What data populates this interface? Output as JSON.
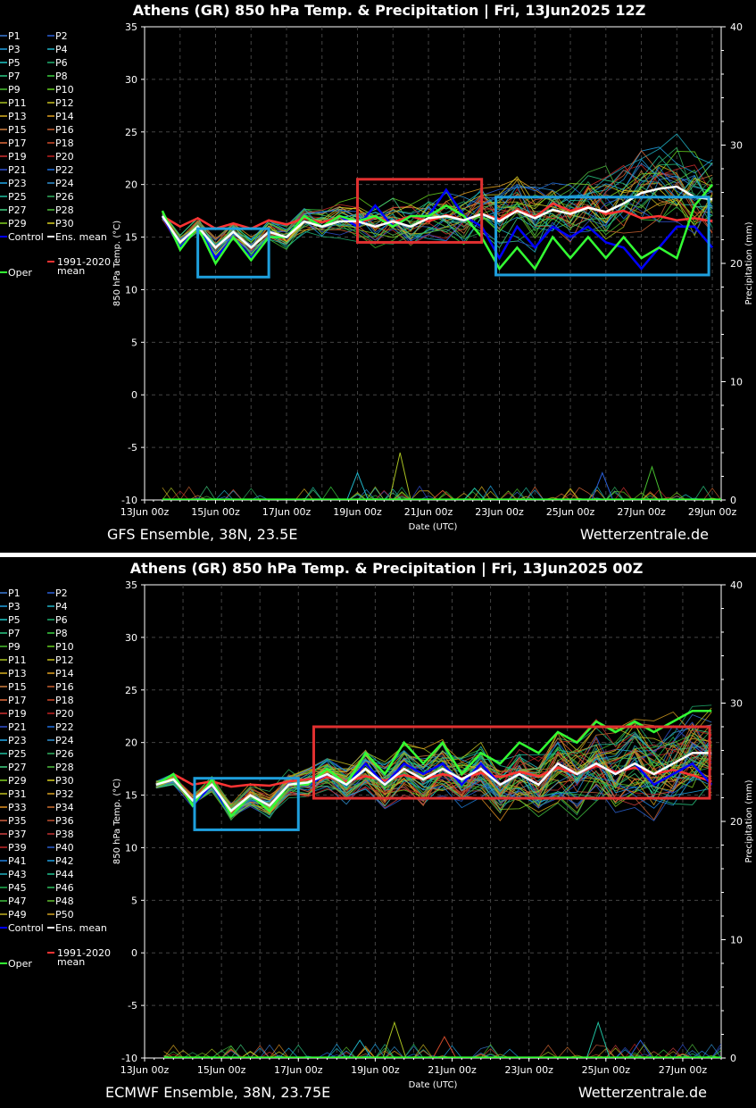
{
  "panels": [
    {
      "title": "Athens  (GR)  850 hPa Temp. & Precipitation | Fri, 13Jun2025 12Z",
      "ylabel_left": "850 hPa Temp. (°C)",
      "ylabel_right": "Precipitation (mm)",
      "xlabel": "Date (UTC)",
      "footer_left": "GFS Ensemble, 38N, 23.5E",
      "footer_right": "Wetterzentrale.de",
      "xticks": [
        "13Jun 00z",
        "15Jun 00z",
        "17Jun 00z",
        "19Jun 00z",
        "21Jun 00z",
        "23Jun 00z",
        "25Jun 00z",
        "27Jun 00z",
        "29Jun 00z"
      ],
      "legend": [
        "P1",
        "P2",
        "P3",
        "P4",
        "P5",
        "P6",
        "P7",
        "P8",
        "P9",
        "P10",
        "P11",
        "P12",
        "P13",
        "P14",
        "P15",
        "P16",
        "P17",
        "P18",
        "P19",
        "P20",
        "P21",
        "P22",
        "P23",
        "P24",
        "P25",
        "P26",
        "P27",
        "P28",
        "P29",
        "P30",
        "Control",
        "Ens. mean",
        "Oper",
        "1991-2020 mean"
      ],
      "legend_colors": [
        "#3a7bd5",
        "#2a5fd8",
        "#1fa0e0",
        "#20b4c8",
        "#1ec8c8",
        "#20b070",
        "#2ac882",
        "#3ad040",
        "#48c030",
        "#66d020",
        "#a8c020",
        "#c8c020",
        "#d8b020",
        "#e0a020",
        "#d08040",
        "#c86030",
        "#e06a3a",
        "#d04a2a",
        "#d03030",
        "#c02020",
        "#3050d0",
        "#2070e0",
        "#20a8e8",
        "#3090d0",
        "#20c0a0",
        "#30b060",
        "#40d080",
        "#50c040",
        "#80d020",
        "#d8d020",
        "#0000ff",
        "#ffffff",
        "#33ff33",
        "#ff3333"
      ],
      "boxes": [
        {
          "color": "#1e9fdd",
          "x0": 1.5,
          "x1": 3.5,
          "y0": 11.2,
          "y1": 15.8
        },
        {
          "color": "#e03030",
          "x0": 6.0,
          "x1": 9.5,
          "y0": 14.5,
          "y1": 20.5
        },
        {
          "color": "#1e9fdd",
          "x0": 9.9,
          "x1": 15.9,
          "y0": 11.4,
          "y1": 18.8
        }
      ],
      "chart_data": {
        "type": "line",
        "x_range": [
          "13Jun 00z",
          "29Jun 06z"
        ],
        "ylim_left": [
          -10,
          35
        ],
        "ylim_right": [
          0,
          40
        ],
        "yticks_left": [
          -10,
          -5,
          0,
          5,
          10,
          15,
          20,
          25,
          30,
          35
        ],
        "yticks_right": [
          0,
          10,
          20,
          30,
          40
        ],
        "series": [
          {
            "name": "Ens. mean",
            "x": [
              0.5,
              1.0,
              1.5,
              2.0,
              2.5,
              3.0,
              3.5,
              4.0,
              4.5,
              5.0,
              5.5,
              6.0,
              6.5,
              7.0,
              7.5,
              8.0,
              8.5,
              9.0,
              9.5,
              10.0,
              10.5,
              11.0,
              11.5,
              12.0,
              12.5,
              13.0,
              13.5,
              14.0,
              14.5,
              15.0,
              15.5,
              16.0
            ],
            "values": [
              17,
              14.5,
              16,
              14,
              15.5,
              14,
              15.5,
              15,
              16.5,
              16,
              16.5,
              16.5,
              16,
              16.5,
              16,
              16.8,
              17,
              16.6,
              17.2,
              16.5,
              17.5,
              16.8,
              17.6,
              17.2,
              17.8,
              17.4,
              18.2,
              19.2,
              19.6,
              19.8,
              18.8,
              18.6
            ]
          },
          {
            "name": "Control",
            "x": [
              0.5,
              1.0,
              1.5,
              2.0,
              2.5,
              3.0,
              3.5,
              4.0,
              4.5,
              5.0,
              5.5,
              6.0,
              6.5,
              7.0,
              7.5,
              8.0,
              8.5,
              9.0,
              9.5,
              10.0,
              10.5,
              11.0,
              11.5,
              12.0,
              12.5,
              13.0,
              13.5,
              14.0,
              14.5,
              15.0,
              15.5,
              16.0
            ],
            "values": [
              17,
              14,
              16,
              13,
              15,
              13,
              15,
              15,
              17,
              16,
              17,
              16,
              18,
              16,
              17,
              17,
              19.5,
              17,
              16,
              13,
              16,
              14,
              16,
              15,
              16,
              14.5,
              14,
              12,
              14,
              16,
              16,
              14
            ]
          },
          {
            "name": "Oper",
            "x": [
              0.5,
              1.0,
              1.5,
              2.0,
              2.5,
              3.0,
              3.5,
              4.0,
              4.5,
              5.0,
              5.5,
              6.0,
              6.5,
              7.0,
              7.5,
              8.0,
              8.5,
              9.0,
              9.5,
              10.0,
              10.5,
              11.0,
              11.5,
              12.0,
              12.5,
              13.0,
              13.5,
              14.0,
              14.5,
              15.0,
              15.5,
              16.0
            ],
            "values": [
              17.5,
              13.8,
              16,
              12.5,
              15,
              12.8,
              15,
              15,
              17,
              16,
              17,
              16.5,
              17,
              16,
              17,
              17,
              18,
              17,
              15,
              12,
              14,
              12,
              15,
              13,
              15,
              13,
              15,
              13,
              14,
              13,
              18,
              20
            ]
          },
          {
            "name": "1991-2020 mean",
            "x": [
              0.5,
              1.0,
              1.5,
              2.0,
              2.5,
              3.0,
              3.5,
              4.0,
              4.5,
              5.0,
              5.5,
              6.0,
              6.5,
              7.0,
              7.5,
              8.0,
              8.5,
              9.0,
              9.5,
              10.0,
              10.5,
              11.0,
              11.5,
              12.0,
              12.5,
              13.0,
              13.5,
              14.0,
              14.5,
              15.0,
              15.5,
              16.0
            ],
            "values": [
              17,
              16,
              16.8,
              15.8,
              16.3,
              15.8,
              16.6,
              16.2,
              16.8,
              16.4,
              16.9,
              16.3,
              16.9,
              16.4,
              17,
              16.5,
              17.1,
              16.6,
              17.2,
              16.7,
              17.6,
              16.9,
              18.2,
              17.5,
              17.9,
              17.2,
              17.5,
              16.8,
              17,
              16.6,
              16.8,
              16.5
            ]
          }
        ],
        "precip_peaks": [
          {
            "x": 6.0,
            "mm": 2.3
          },
          {
            "x": 7.2,
            "mm": 4.0
          },
          {
            "x": 8.4,
            "mm": 0.8
          },
          {
            "x": 9.3,
            "mm": 1.0
          },
          {
            "x": 12.9,
            "mm": 2.3
          },
          {
            "x": 14.3,
            "mm": 2.8
          }
        ]
      }
    },
    {
      "title": "Athens  (GR)  850 hPa Temp. & Precipitation | Fri, 13Jun2025 00Z",
      "ylabel_left": "850 hPa Temp. (°C)",
      "ylabel_right": "Precipitation (mm)",
      "xlabel": "Date (UTC)",
      "footer_left": "ECMWF Ensemble, 38N, 23.75E",
      "footer_right": "Wetterzentrale.de",
      "xticks": [
        "13Jun 00z",
        "15Jun 00z",
        "17Jun 00z",
        "19Jun 00z",
        "21Jun 00z",
        "23Jun 00z",
        "25Jun 00z",
        "27Jun 00z"
      ],
      "legend": [
        "P1",
        "P2",
        "P3",
        "P4",
        "P5",
        "P6",
        "P7",
        "P8",
        "P9",
        "P10",
        "P11",
        "P12",
        "P13",
        "P14",
        "P15",
        "P16",
        "P17",
        "P18",
        "P19",
        "P20",
        "P21",
        "P22",
        "P23",
        "P24",
        "P25",
        "P26",
        "P27",
        "P28",
        "P29",
        "P30",
        "P31",
        "P32",
        "P33",
        "P34",
        "P35",
        "P36",
        "P37",
        "P38",
        "P39",
        "P40",
        "P41",
        "P42",
        "P43",
        "P44",
        "P45",
        "P46",
        "P47",
        "P48",
        "P49",
        "P50",
        "Control",
        "Ens. mean",
        "Oper",
        "1991-2020 mean"
      ],
      "legend_colors": [
        "#3a7bd5",
        "#2a5fd8",
        "#1fa0e0",
        "#20b4c8",
        "#1ec8c8",
        "#20b070",
        "#2ac882",
        "#3ad040",
        "#48c030",
        "#66d020",
        "#a8c020",
        "#c8c020",
        "#d8b020",
        "#e0a020",
        "#d08040",
        "#c86030",
        "#e06a3a",
        "#d04a2a",
        "#d03030",
        "#c02020",
        "#3050d0",
        "#2070e0",
        "#20a8e8",
        "#3090d0",
        "#20c0a0",
        "#30b060",
        "#40d080",
        "#50c040",
        "#80d020",
        "#d8d020",
        "#c0c020",
        "#d8a020",
        "#e09020",
        "#d07030",
        "#d06040",
        "#c05030",
        "#d04040",
        "#c03030",
        "#c02828",
        "#2a60d0",
        "#2080e0",
        "#20a0e0",
        "#20b0c0",
        "#20c090",
        "#20b050",
        "#30c060",
        "#40c040",
        "#60c030",
        "#c0b020",
        "#d0a020",
        "#0000ff",
        "#ffffff",
        "#33ff33",
        "#ff3333"
      ],
      "boxes": [
        {
          "color": "#1e9fdd",
          "x0": 1.3,
          "x1": 4.0,
          "y0": 11.7,
          "y1": 16.6
        },
        {
          "color": "#e03030",
          "x0": 4.4,
          "x1": 14.7,
          "y0": 14.7,
          "y1": 21.5
        }
      ],
      "chart_data": {
        "type": "line",
        "x_range": [
          "13Jun 00z",
          "28Jun 00z"
        ],
        "ylim_left": [
          -10,
          35
        ],
        "ylim_right": [
          0,
          40
        ],
        "yticks_left": [
          -10,
          -5,
          0,
          5,
          10,
          15,
          20,
          25,
          30,
          35
        ],
        "yticks_right": [
          0,
          10,
          20,
          30,
          40
        ],
        "series": [
          {
            "name": "Ens. mean",
            "x": [
              0.3,
              0.75,
              1.25,
              1.75,
              2.25,
              2.75,
              3.25,
              3.75,
              4.25,
              4.75,
              5.25,
              5.75,
              6.25,
              6.75,
              7.25,
              7.75,
              8.25,
              8.75,
              9.25,
              9.75,
              10.25,
              10.75,
              11.25,
              11.75,
              12.25,
              12.75,
              13.25,
              13.75,
              14.25,
              14.75
            ],
            "values": [
              16,
              16.5,
              14.5,
              16,
              13.5,
              15,
              14,
              16,
              16.2,
              17,
              16,
              17.5,
              16,
              17.5,
              16.5,
              17.5,
              16.5,
              17.5,
              16,
              17,
              16,
              18,
              17,
              18,
              17,
              18,
              17,
              18,
              19,
              19
            ]
          },
          {
            "name": "Control",
            "x": [
              0.3,
              0.75,
              1.25,
              1.75,
              2.25,
              2.75,
              3.25,
              3.75,
              4.25,
              4.75,
              5.25,
              5.75,
              6.25,
              6.75,
              7.25,
              7.75,
              8.25,
              8.75,
              9.25,
              9.75,
              10.25,
              10.75,
              11.25,
              11.75,
              12.25,
              12.75,
              13.25,
              13.75,
              14.25,
              14.75
            ],
            "values": [
              16,
              17,
              14,
              16,
              13,
              15,
              14,
              16,
              16,
              17,
              16,
              18,
              16,
              18,
              17,
              18,
              16,
              18,
              16,
              17,
              16,
              18,
              17,
              18,
              17,
              18,
              16,
              17,
              18,
              16
            ]
          },
          {
            "name": "Oper",
            "x": [
              0.3,
              0.75,
              1.25,
              1.75,
              2.25,
              2.75,
              3.25,
              3.75,
              4.25,
              4.75,
              5.25,
              5.75,
              6.25,
              6.75,
              7.25,
              7.75,
              8.25,
              8.75,
              9.25,
              9.75,
              10.25,
              10.75,
              11.25,
              11.75,
              12.25,
              12.75,
              13.25,
              13.75,
              14.25,
              14.75
            ],
            "values": [
              16,
              17,
              14,
              16.5,
              13,
              15,
              13.5,
              16,
              16,
              17.5,
              16,
              19,
              17,
              20,
              18,
              20,
              17,
              19,
              18,
              20,
              19,
              21,
              20,
              22,
              21,
              22,
              21,
              22,
              23,
              23
            ]
          },
          {
            "name": "1991-2020 mean",
            "x": [
              0.3,
              0.75,
              1.25,
              1.75,
              2.25,
              2.75,
              3.25,
              3.75,
              4.25,
              4.75,
              5.25,
              5.75,
              6.25,
              6.75,
              7.25,
              7.75,
              8.25,
              8.75,
              9.25,
              9.75,
              10.25,
              10.75,
              11.25,
              11.75,
              12.25,
              12.75,
              13.25,
              13.75,
              14.25,
              14.75
            ],
            "values": [
              16,
              17,
              16,
              16.3,
              15.8,
              16,
              15.9,
              16.3,
              16.5,
              16.7,
              16.3,
              16.8,
              16.4,
              16.9,
              16.5,
              17,
              16.6,
              17.1,
              16.7,
              17.2,
              16.8,
              17.6,
              17,
              17.8,
              17.2,
              17.6,
              17,
              17.4,
              16.9,
              16.3
            ]
          }
        ],
        "precip_peaks": [
          {
            "x": 5.6,
            "mm": 1.5
          },
          {
            "x": 6.5,
            "mm": 3.0
          },
          {
            "x": 7.8,
            "mm": 1.8
          },
          {
            "x": 11.8,
            "mm": 3.0
          },
          {
            "x": 12.9,
            "mm": 1.5
          }
        ]
      }
    }
  ]
}
